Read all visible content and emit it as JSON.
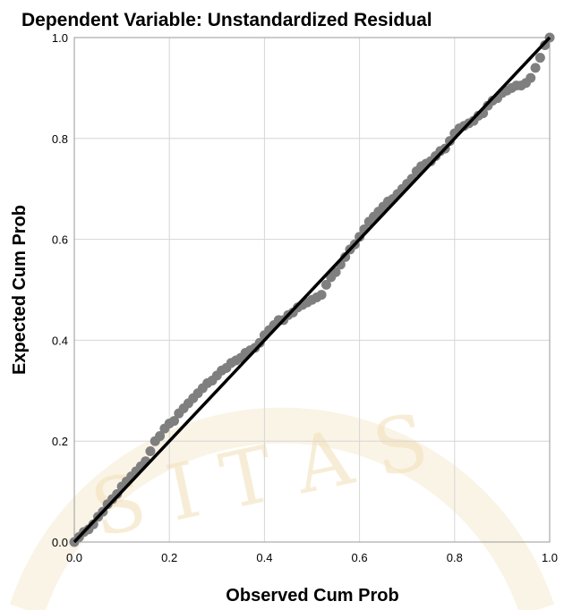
{
  "chart_data": {
    "type": "scatter",
    "title": "Dependent Variable: Unstandardized Residual",
    "xlabel": "Observed Cum Prob",
    "ylabel": "Expected Cum Prob",
    "xlim": [
      0,
      1
    ],
    "ylim": [
      0,
      1
    ],
    "xticks": [
      "0.0",
      "0.2",
      "0.4",
      "0.6",
      "0.8",
      "1.0"
    ],
    "yticks": [
      "0.0",
      "0.2",
      "0.4",
      "0.6",
      "0.8",
      "1.0"
    ],
    "grid": true,
    "legend": "none",
    "point_color": "#7f7f7f",
    "line_color": "#000000",
    "reference_line": {
      "from": [
        0,
        0
      ],
      "to": [
        1,
        1
      ]
    },
    "points": [
      [
        0.0,
        0.0
      ],
      [
        0.01,
        0.01
      ],
      [
        0.02,
        0.02
      ],
      [
        0.03,
        0.025
      ],
      [
        0.04,
        0.035
      ],
      [
        0.05,
        0.05
      ],
      [
        0.06,
        0.06
      ],
      [
        0.07,
        0.075
      ],
      [
        0.08,
        0.085
      ],
      [
        0.09,
        0.095
      ],
      [
        0.1,
        0.11
      ],
      [
        0.11,
        0.12
      ],
      [
        0.12,
        0.13
      ],
      [
        0.13,
        0.14
      ],
      [
        0.14,
        0.15
      ],
      [
        0.15,
        0.16
      ],
      [
        0.16,
        0.18
      ],
      [
        0.17,
        0.2
      ],
      [
        0.18,
        0.21
      ],
      [
        0.19,
        0.225
      ],
      [
        0.2,
        0.235
      ],
      [
        0.21,
        0.24
      ],
      [
        0.22,
        0.255
      ],
      [
        0.23,
        0.265
      ],
      [
        0.24,
        0.275
      ],
      [
        0.25,
        0.285
      ],
      [
        0.26,
        0.295
      ],
      [
        0.27,
        0.305
      ],
      [
        0.28,
        0.315
      ],
      [
        0.29,
        0.32
      ],
      [
        0.3,
        0.33
      ],
      [
        0.31,
        0.34
      ],
      [
        0.32,
        0.345
      ],
      [
        0.33,
        0.355
      ],
      [
        0.34,
        0.36
      ],
      [
        0.35,
        0.365
      ],
      [
        0.36,
        0.375
      ],
      [
        0.37,
        0.38
      ],
      [
        0.38,
        0.385
      ],
      [
        0.39,
        0.395
      ],
      [
        0.4,
        0.41
      ],
      [
        0.41,
        0.42
      ],
      [
        0.42,
        0.43
      ],
      [
        0.43,
        0.44
      ],
      [
        0.44,
        0.44
      ],
      [
        0.45,
        0.45
      ],
      [
        0.46,
        0.455
      ],
      [
        0.47,
        0.465
      ],
      [
        0.48,
        0.47
      ],
      [
        0.49,
        0.475
      ],
      [
        0.5,
        0.48
      ],
      [
        0.51,
        0.485
      ],
      [
        0.52,
        0.49
      ],
      [
        0.53,
        0.51
      ],
      [
        0.54,
        0.525
      ],
      [
        0.55,
        0.535
      ],
      [
        0.56,
        0.55
      ],
      [
        0.57,
        0.565
      ],
      [
        0.58,
        0.58
      ],
      [
        0.59,
        0.59
      ],
      [
        0.6,
        0.605
      ],
      [
        0.61,
        0.62
      ],
      [
        0.62,
        0.635
      ],
      [
        0.63,
        0.645
      ],
      [
        0.64,
        0.655
      ],
      [
        0.65,
        0.665
      ],
      [
        0.66,
        0.675
      ],
      [
        0.67,
        0.68
      ],
      [
        0.68,
        0.69
      ],
      [
        0.69,
        0.7
      ],
      [
        0.7,
        0.71
      ],
      [
        0.71,
        0.72
      ],
      [
        0.72,
        0.735
      ],
      [
        0.73,
        0.745
      ],
      [
        0.74,
        0.75
      ],
      [
        0.75,
        0.755
      ],
      [
        0.76,
        0.765
      ],
      [
        0.77,
        0.775
      ],
      [
        0.78,
        0.78
      ],
      [
        0.79,
        0.795
      ],
      [
        0.8,
        0.81
      ],
      [
        0.81,
        0.82
      ],
      [
        0.82,
        0.825
      ],
      [
        0.83,
        0.83
      ],
      [
        0.84,
        0.835
      ],
      [
        0.85,
        0.845
      ],
      [
        0.86,
        0.85
      ],
      [
        0.87,
        0.865
      ],
      [
        0.88,
        0.875
      ],
      [
        0.89,
        0.88
      ],
      [
        0.9,
        0.89
      ],
      [
        0.91,
        0.895
      ],
      [
        0.92,
        0.9
      ],
      [
        0.93,
        0.905
      ],
      [
        0.94,
        0.905
      ],
      [
        0.95,
        0.91
      ],
      [
        0.96,
        0.92
      ],
      [
        0.97,
        0.94
      ],
      [
        0.98,
        0.96
      ],
      [
        0.99,
        0.985
      ],
      [
        1.0,
        1.0
      ]
    ]
  }
}
